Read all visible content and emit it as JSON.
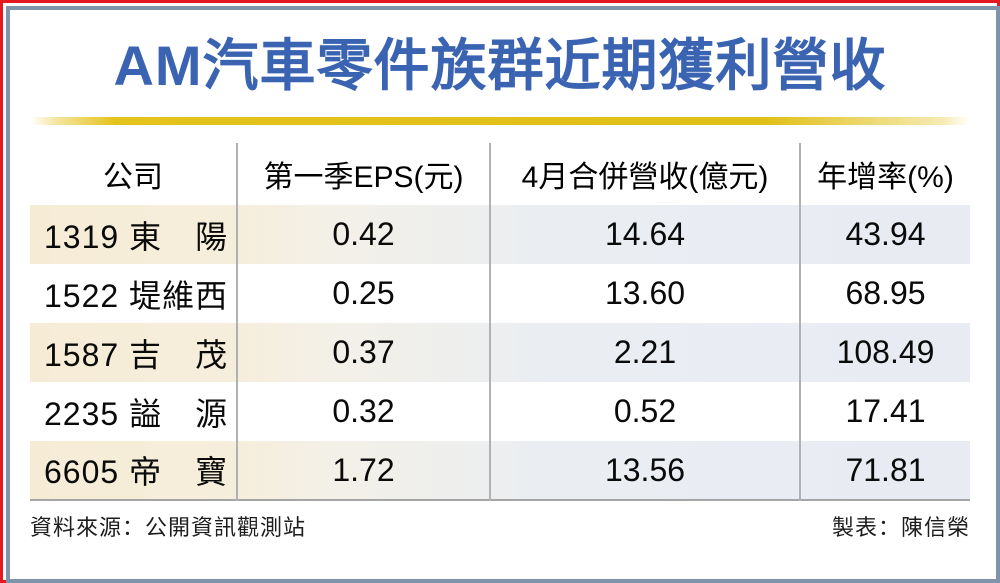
{
  "title": "AM汽車零件族群近期獲利營收",
  "table": {
    "headers": [
      "公司",
      "第一季EPS(元)",
      "4月合併營收(億元)",
      "年增率(%)"
    ],
    "rows": [
      {
        "company": "1319 東　陽",
        "eps": "0.42",
        "revenue": "14.64",
        "yoy": "43.94"
      },
      {
        "company": "1522 堤維西",
        "eps": "0.25",
        "revenue": "13.60",
        "yoy": "68.95"
      },
      {
        "company": "1587 吉　茂",
        "eps": "0.37",
        "revenue": "2.21",
        "yoy": "108.49"
      },
      {
        "company": "2235 謚　源",
        "eps": "0.32",
        "revenue": "0.52",
        "yoy": "17.41"
      },
      {
        "company": "6605 帝　寶",
        "eps": "1.72",
        "revenue": "13.56",
        "yoy": "71.81"
      }
    ]
  },
  "footer": {
    "source": "資料來源：公開資訊觀測站",
    "credit": "製表：陳信榮"
  },
  "colors": {
    "title_blue": "#3a63b2",
    "frame_red": "#e51a20",
    "frame_slate": "#7d94ab",
    "gold_bar": "#e5c31d",
    "row_cream": "#f6ecd6",
    "row_blue_gray": "#e8ecf2",
    "divider_gray": "#b1b1b1"
  },
  "chart_data": {
    "type": "table",
    "title": "AM汽車零件族群近期獲利營收",
    "columns": [
      "公司",
      "第一季EPS(元)",
      "4月合併營收(億元)",
      "年增率(%)"
    ],
    "rows": [
      [
        "1319 東陽",
        0.42,
        14.64,
        43.94
      ],
      [
        "1522 堤維西",
        0.25,
        13.6,
        68.95
      ],
      [
        "1587 吉茂",
        0.37,
        2.21,
        108.49
      ],
      [
        "2235 謚源",
        0.32,
        0.52,
        17.41
      ],
      [
        "6605 帝寶",
        1.72,
        13.56,
        71.81
      ]
    ],
    "source": "公開資訊觀測站",
    "credit": "陳信榮"
  }
}
